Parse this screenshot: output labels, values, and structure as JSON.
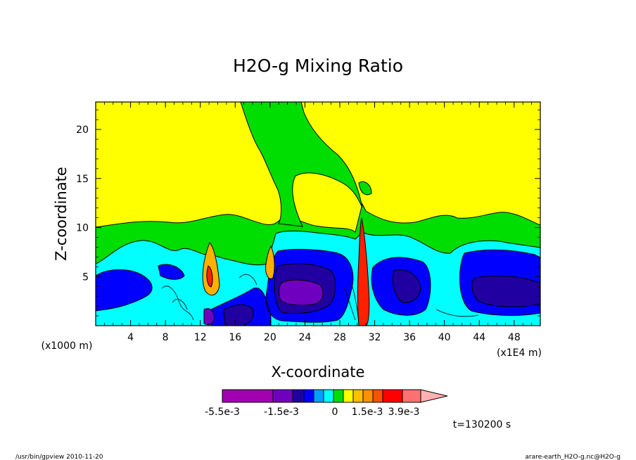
{
  "chart_data": {
    "type": "heatmap",
    "title": "H2O-g Mixing Ratio",
    "xlabel": "X-coordinate",
    "ylabel": "Z-coordinate",
    "x_unit_left": "(x1000 m)",
    "x_unit_right": "(x1E4 m)",
    "xlim": [
      0,
      51
    ],
    "ylim": [
      0,
      22.8
    ],
    "x_ticks": [
      4,
      8,
      12,
      16,
      20,
      24,
      28,
      32,
      36,
      40,
      44,
      48
    ],
    "x_tick_labels": [
      "4",
      "8",
      "12",
      "16",
      "20",
      "24",
      "28",
      "32",
      "36",
      "40",
      "44",
      "48"
    ],
    "y_ticks": [
      5,
      10,
      15,
      20
    ],
    "y_tick_labels": [
      "5",
      "10",
      "15",
      "20"
    ],
    "levels": [
      "-5.5e-3",
      "-1.5e-3",
      "0",
      "1.5e-3",
      "3.9e-3"
    ],
    "colorbar_colors": [
      "#a000b0",
      "#7000c0",
      "#2000a0",
      "#0000ff",
      "#00a0ff",
      "#00ffff",
      "#00dd00",
      "#ffff00",
      "#ffc000",
      "#ff9000",
      "#ff5000",
      "#ff0000",
      "#ff7070",
      "#ffb0b0"
    ],
    "colorbar_tick_labels": [
      "-5.5e-3",
      "-1.5e-3",
      "0",
      "1.5e-3",
      "3.9e-3"
    ],
    "time_label": "t=130200 s",
    "field_colors": {
      "background": "#ffff00",
      "band_green": "#00dd00",
      "band_cyan": "#00ffff",
      "band_blue": "#0000ff",
      "band_navy": "#2000a0",
      "band_purple": "#7000c0",
      "core_magenta": "#a000b0",
      "warm_orange": "#ffb000",
      "warm_red": "#ff2000"
    }
  },
  "footer": {
    "left": "/usr/bin/gpview  2010-11-20",
    "right": "arare-earth_H2O-g.nc@H2O-g"
  }
}
